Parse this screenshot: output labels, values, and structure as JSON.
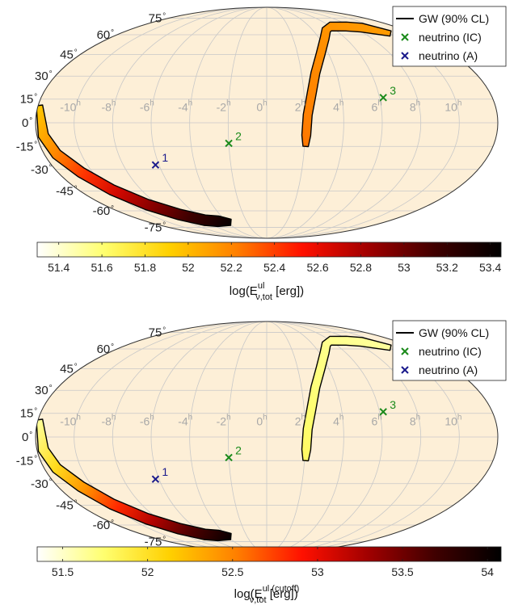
{
  "chart_data": [
    {
      "type": "heatmap",
      "projection": "mollweide",
      "ra_labels": [
        {
          "h": "10",
          "ra": 150
        },
        {
          "h": "8",
          "ra": 120
        },
        {
          "h": "6",
          "ra": 90
        },
        {
          "h": "4",
          "ra": 60
        },
        {
          "h": "2",
          "ra": 30
        },
        {
          "h": "0",
          "ra": 0
        },
        {
          "h": "-2",
          "ra": -30
        },
        {
          "h": "-4",
          "ra": -60
        },
        {
          "h": "-6",
          "ra": -90
        },
        {
          "h": "-8",
          "ra": -120
        },
        {
          "h": "-10",
          "ra": -150
        }
      ],
      "dec_labels": [
        {
          "text": "75",
          "dec": 75
        },
        {
          "text": "60",
          "dec": 60
        },
        {
          "text": "45",
          "dec": 45
        },
        {
          "text": "30",
          "dec": 30
        },
        {
          "text": "15",
          "dec": 15
        },
        {
          "text": "0",
          "dec": 0
        },
        {
          "text": "-15",
          "dec": -15
        },
        {
          "text": "-30",
          "dec": -30
        },
        {
          "text": "-45",
          "dec": -45
        },
        {
          "text": "-60",
          "dec": -60
        },
        {
          "text": "-75",
          "dec": -75
        }
      ],
      "legend": {
        "position": "top-right",
        "entries": [
          {
            "label": "GW (90% CL)",
            "color": "#000000",
            "marker": "line"
          },
          {
            "label": "neutrino (IC)",
            "color": "#1a8a1a",
            "marker": "x"
          },
          {
            "label": "neutrino (A)",
            "color": "#1a1a8c",
            "marker": "x"
          }
        ]
      },
      "neutrinos": [
        {
          "label": "3",
          "ra": 93,
          "dec": 16,
          "type": "IC",
          "color": "#1a8a1a"
        },
        {
          "label": "2",
          "ra": -30,
          "dec": -13,
          "type": "IC",
          "color": "#1a8a1a"
        },
        {
          "label": "1",
          "ra": -93,
          "dec": -27,
          "type": "A",
          "color": "#1a1a8c"
        }
      ],
      "gw_region": {
        "upper_centerline": [
          [
            152,
            61
          ],
          [
            130,
            66
          ],
          [
            112,
            67
          ],
          [
            90,
            67
          ],
          [
            78,
            64
          ],
          [
            66,
            57
          ],
          [
            52,
            45
          ],
          [
            42,
            32
          ],
          [
            36,
            18
          ],
          [
            32,
            5
          ],
          [
            31,
            -8
          ],
          [
            31,
            -15
          ]
        ],
        "lower_centerline": [
          [
            -179,
            11
          ],
          [
            -175,
            -8
          ],
          [
            -170,
            -20
          ],
          [
            -160,
            -32
          ],
          [
            -148,
            -44
          ],
          [
            -132,
            -55
          ],
          [
            -112,
            -63
          ],
          [
            -90,
            -68
          ],
          [
            -72,
            -69
          ],
          [
            -55,
            -70
          ]
        ]
      },
      "colorbar": {
        "label": "log(E^{ul}_{ν,tot} [erg])",
        "min": 51.3,
        "max": 53.45,
        "ticks": [
          "51.4",
          "51.6",
          "51.8",
          "52",
          "52.2",
          "52.4",
          "52.6",
          "52.8",
          "53",
          "53.2",
          "53.4"
        ]
      }
    },
    {
      "type": "heatmap",
      "projection": "mollweide",
      "ra_labels": [
        {
          "h": "10",
          "ra": 150
        },
        {
          "h": "8",
          "ra": 120
        },
        {
          "h": "6",
          "ra": 90
        },
        {
          "h": "4",
          "ra": 60
        },
        {
          "h": "2",
          "ra": 30
        },
        {
          "h": "0",
          "ra": 0
        },
        {
          "h": "-2",
          "ra": -30
        },
        {
          "h": "-4",
          "ra": -60
        },
        {
          "h": "-6",
          "ra": -90
        },
        {
          "h": "-8",
          "ra": -120
        },
        {
          "h": "-10",
          "ra": -150
        }
      ],
      "dec_labels": [
        {
          "text": "75",
          "dec": 75
        },
        {
          "text": "60",
          "dec": 60
        },
        {
          "text": "45",
          "dec": 45
        },
        {
          "text": "30",
          "dec": 30
        },
        {
          "text": "15",
          "dec": 15
        },
        {
          "text": "0",
          "dec": 0
        },
        {
          "text": "-15",
          "dec": -15
        },
        {
          "text": "-30",
          "dec": -30
        },
        {
          "text": "-45",
          "dec": -45
        },
        {
          "text": "-60",
          "dec": -60
        },
        {
          "text": "-75",
          "dec": -75
        }
      ],
      "legend": {
        "position": "top-right",
        "entries": [
          {
            "label": "GW (90% CL)",
            "color": "#000000",
            "marker": "line"
          },
          {
            "label": "neutrino (IC)",
            "color": "#1a8a1a",
            "marker": "x"
          },
          {
            "label": "neutrino (A)",
            "color": "#1a1a8c",
            "marker": "x"
          }
        ]
      },
      "neutrinos": [
        {
          "label": "3",
          "ra": 93,
          "dec": 16,
          "type": "IC",
          "color": "#1a8a1a"
        },
        {
          "label": "2",
          "ra": -30,
          "dec": -13,
          "type": "IC",
          "color": "#1a8a1a"
        },
        {
          "label": "1",
          "ra": -93,
          "dec": -27,
          "type": "A",
          "color": "#1a1a8c"
        }
      ],
      "gw_region": {
        "upper_centerline": [
          [
            152,
            61
          ],
          [
            130,
            66
          ],
          [
            112,
            67
          ],
          [
            90,
            67
          ],
          [
            78,
            64
          ],
          [
            66,
            57
          ],
          [
            52,
            45
          ],
          [
            42,
            32
          ],
          [
            36,
            18
          ],
          [
            32,
            5
          ],
          [
            31,
            -8
          ],
          [
            31,
            -15
          ]
        ],
        "lower_centerline": [
          [
            -179,
            11
          ],
          [
            -175,
            -8
          ],
          [
            -170,
            -20
          ],
          [
            -160,
            -32
          ],
          [
            -148,
            -44
          ],
          [
            -132,
            -55
          ],
          [
            -112,
            -63
          ],
          [
            -90,
            -68
          ],
          [
            -72,
            -69
          ],
          [
            -55,
            -70
          ]
        ]
      },
      "colorbar": {
        "label": "log(E^{ul (cutoff)}_{ν,tot} [erg])",
        "min": 51.35,
        "max": 54.08,
        "ticks": [
          "51.5",
          "52",
          "52.5",
          "53",
          "53.5",
          "54"
        ]
      }
    }
  ],
  "colors": {
    "map_background": "#fdefd7",
    "grid": "#c8c8c8",
    "ra_label": "#a8a8a8",
    "cmap": [
      "#ffffff",
      "#ffff70",
      "#ffd000",
      "#ff8000",
      "#ff1000",
      "#a00000",
      "#400000",
      "#000000"
    ]
  }
}
